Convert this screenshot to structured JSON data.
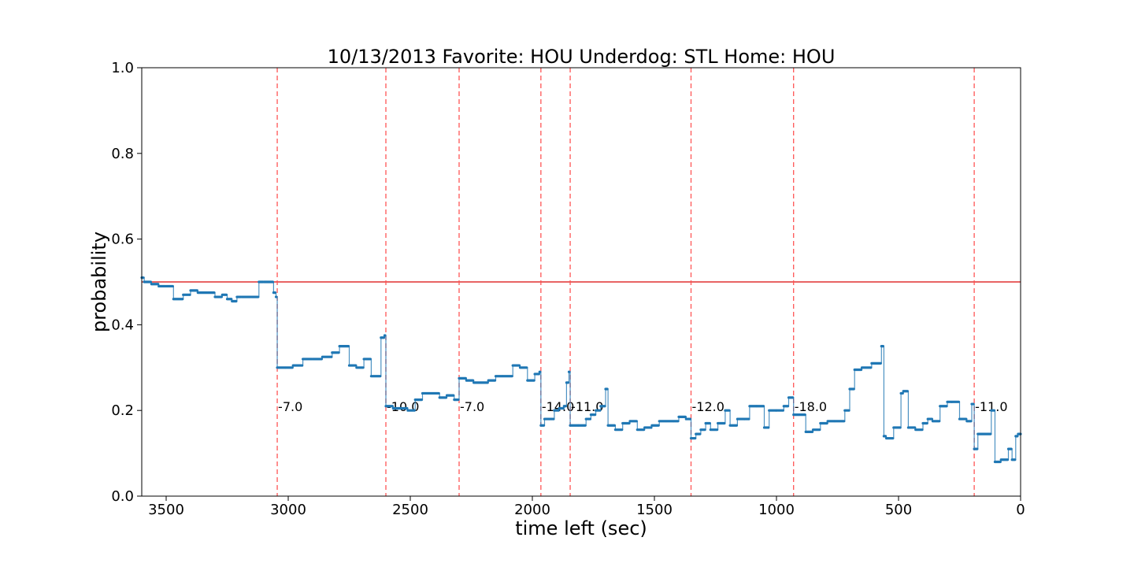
{
  "chart_data": {
    "type": "line",
    "title": "10/13/2013 Favorite: HOU Underdog: STL Home: HOU",
    "xlabel": "time left (sec)",
    "ylabel": "probability",
    "xlim": [
      3600,
      0
    ],
    "ylim": [
      0.0,
      1.0
    ],
    "xticks": [
      3500,
      3000,
      2500,
      2000,
      1500,
      1000,
      500,
      0
    ],
    "yticks": [
      0.0,
      0.2,
      0.4,
      0.6,
      0.8,
      1.0
    ],
    "xtick_labels": [
      "3500",
      "3000",
      "2500",
      "2000",
      "1500",
      "1000",
      "500",
      "0"
    ],
    "ytick_labels": [
      "0.0",
      "0.2",
      "0.4",
      "0.6",
      "0.8",
      "1.0"
    ],
    "grid": false,
    "reference_line": {
      "y": 0.5,
      "color": "#e03030"
    },
    "series_color": "#1f77b4",
    "event_line_color": "#ff5555",
    "events": [
      {
        "x": 3045,
        "label": "-7.0"
      },
      {
        "x": 2600,
        "label": "-10.0"
      },
      {
        "x": 2300,
        "label": "-7.0"
      },
      {
        "x": 1965,
        "label": "-14.0"
      },
      {
        "x": 1845,
        "label": "-11.0"
      },
      {
        "x": 1350,
        "label": "-12.0"
      },
      {
        "x": 930,
        "label": "-18.0"
      },
      {
        "x": 190,
        "label": "-11.0"
      }
    ],
    "series": [
      {
        "x": [
          3600,
          3590,
          3560,
          3530,
          3500,
          3470,
          3430,
          3400,
          3370,
          3330,
          3300,
          3270,
          3250,
          3230,
          3210,
          3190,
          3150,
          3120,
          3100,
          3060,
          3050,
          3045,
          3010,
          2980,
          2940,
          2900,
          2860,
          2820,
          2790,
          2750,
          2720,
          2690,
          2660,
          2620,
          2605,
          2600,
          2570,
          2550,
          2510,
          2480,
          2450,
          2380,
          2350,
          2320,
          2305,
          2300,
          2270,
          2240,
          2210,
          2180,
          2150,
          2120,
          2080,
          2050,
          2020,
          1990,
          1970,
          1965,
          1950,
          1930,
          1910,
          1890,
          1870,
          1860,
          1850,
          1845,
          1810,
          1780,
          1760,
          1740,
          1720,
          1700,
          1690,
          1660,
          1630,
          1600,
          1570,
          1540,
          1510,
          1480,
          1450,
          1420,
          1400,
          1370,
          1355,
          1350,
          1330,
          1310,
          1290,
          1270,
          1240,
          1210,
          1190,
          1160,
          1130,
          1110,
          1080,
          1050,
          1030,
          1000,
          970,
          950,
          935,
          930,
          910,
          880,
          850,
          820,
          790,
          760,
          720,
          700,
          680,
          650,
          610,
          570,
          560,
          550,
          520,
          490,
          480,
          460,
          430,
          400,
          380,
          360,
          330,
          300,
          280,
          250,
          220,
          200,
          195,
          190,
          175,
          140,
          120,
          105,
          80,
          50,
          35,
          20,
          10,
          0
        ],
        "values": [
          0.51,
          0.5,
          0.495,
          0.49,
          0.49,
          0.46,
          0.47,
          0.48,
          0.475,
          0.475,
          0.465,
          0.47,
          0.46,
          0.455,
          0.465,
          0.465,
          0.465,
          0.5,
          0.5,
          0.475,
          0.465,
          0.3,
          0.3,
          0.305,
          0.32,
          0.32,
          0.325,
          0.335,
          0.35,
          0.305,
          0.3,
          0.32,
          0.28,
          0.37,
          0.375,
          0.21,
          0.205,
          0.205,
          0.2,
          0.225,
          0.24,
          0.23,
          0.235,
          0.225,
          0.225,
          0.275,
          0.27,
          0.265,
          0.265,
          0.27,
          0.28,
          0.28,
          0.305,
          0.3,
          0.27,
          0.285,
          0.29,
          0.165,
          0.18,
          0.18,
          0.2,
          0.205,
          0.21,
          0.265,
          0.29,
          0.165,
          0.165,
          0.18,
          0.19,
          0.2,
          0.21,
          0.25,
          0.165,
          0.155,
          0.17,
          0.175,
          0.155,
          0.16,
          0.165,
          0.175,
          0.175,
          0.175,
          0.185,
          0.18,
          0.18,
          0.135,
          0.145,
          0.155,
          0.17,
          0.155,
          0.17,
          0.2,
          0.165,
          0.18,
          0.18,
          0.21,
          0.21,
          0.16,
          0.2,
          0.2,
          0.21,
          0.23,
          0.23,
          0.19,
          0.19,
          0.15,
          0.155,
          0.17,
          0.175,
          0.175,
          0.2,
          0.25,
          0.295,
          0.3,
          0.31,
          0.35,
          0.14,
          0.135,
          0.16,
          0.24,
          0.245,
          0.16,
          0.155,
          0.17,
          0.18,
          0.175,
          0.21,
          0.22,
          0.22,
          0.18,
          0.175,
          0.215,
          0.215,
          0.11,
          0.145,
          0.145,
          0.2,
          0.08,
          0.085,
          0.11,
          0.085,
          0.14,
          0.145,
          0.145
        ]
      }
    ]
  }
}
